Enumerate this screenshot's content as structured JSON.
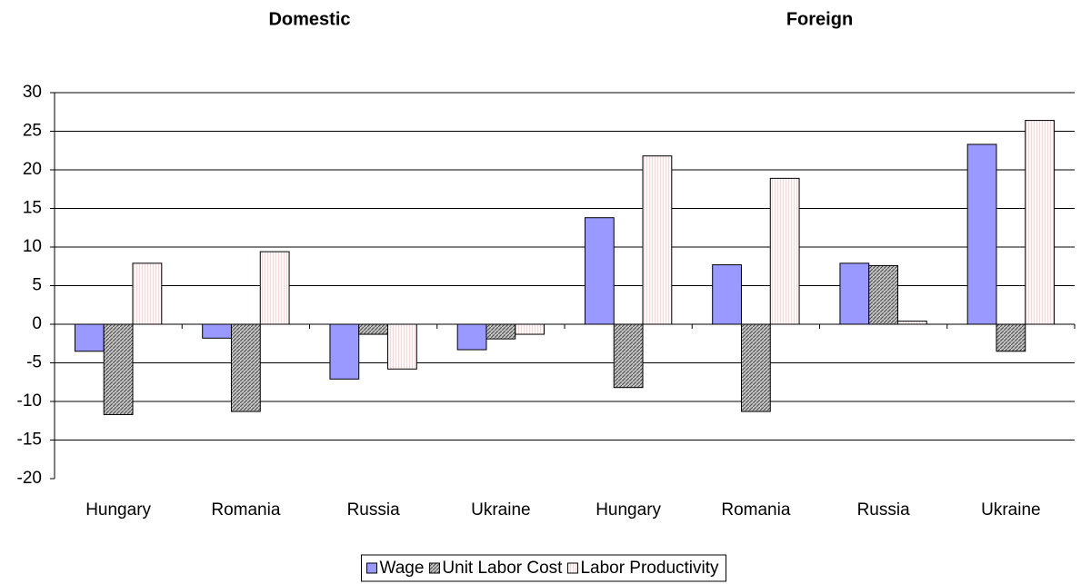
{
  "chart_data": {
    "type": "bar",
    "group_labels": [
      "Domestic",
      "Foreign"
    ],
    "categories": [
      "Hungary",
      "Romania",
      "Russia",
      "Ukraine",
      "Hungary",
      "Romania",
      "Russia",
      "Ukraine"
    ],
    "series": [
      {
        "name": "Wage",
        "color": "#9999ff",
        "values": [
          -3.5,
          -1.8,
          -7.1,
          -3.3,
          13.8,
          7.7,
          7.9,
          23.3
        ]
      },
      {
        "name": "Unit Labor Cost",
        "color": "#808080",
        "values": [
          -11.7,
          -11.3,
          -1.3,
          -1.9,
          -8.2,
          -11.3,
          7.6,
          -3.5
        ]
      },
      {
        "name": "Labor Productivity",
        "color": "#fff4f4",
        "values": [
          7.9,
          9.4,
          -5.8,
          -1.3,
          21.8,
          18.9,
          0.4,
          26.4
        ]
      }
    ],
    "ylim": [
      -20,
      30
    ],
    "yticks": [
      -20,
      -15,
      -10,
      -5,
      0,
      5,
      10,
      15,
      20,
      25,
      30
    ],
    "grid": true
  }
}
